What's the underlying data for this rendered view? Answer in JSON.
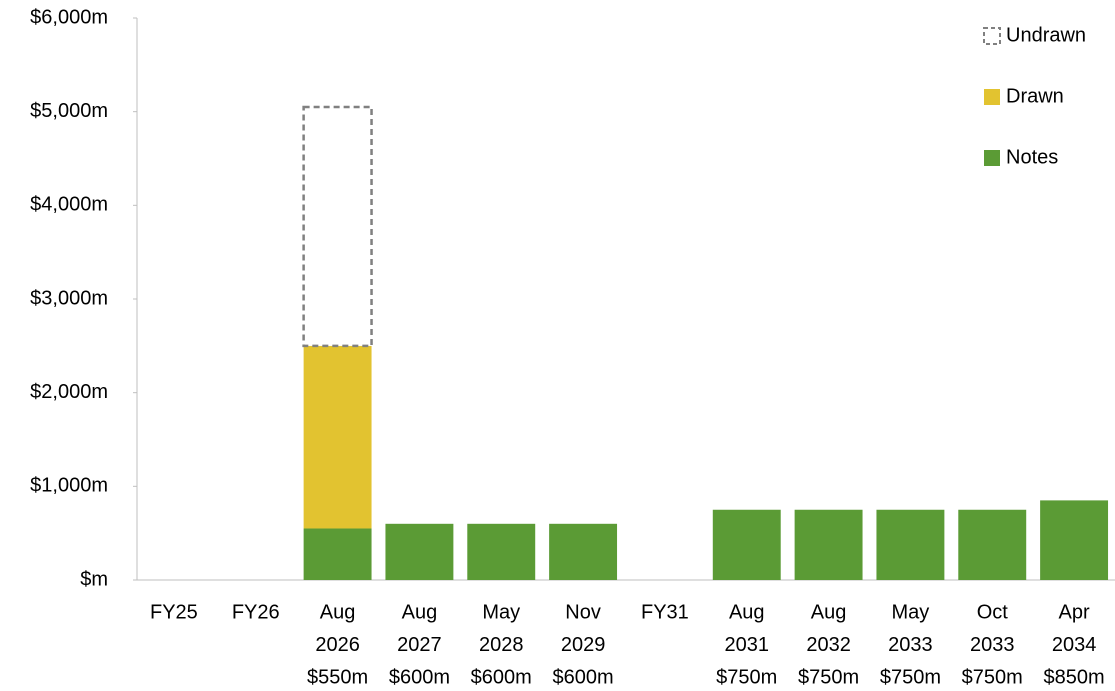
{
  "chart_data": {
    "type": "stacked_bar",
    "categories": [
      [
        "FY25"
      ],
      [
        "FY26"
      ],
      [
        "Aug",
        "2026",
        "$550m"
      ],
      [
        "Aug",
        "2027",
        "$600m"
      ],
      [
        "May",
        "2028",
        "$600m"
      ],
      [
        "Nov",
        "2029",
        "$600m"
      ],
      [
        "FY31"
      ],
      [
        "Aug",
        "2031",
        "$750m"
      ],
      [
        "Aug",
        "2032",
        "$750m"
      ],
      [
        "May",
        "2033",
        "$750m"
      ],
      [
        "Oct",
        "2033",
        "$750m"
      ],
      [
        "Apr",
        "2034",
        "$850m"
      ]
    ],
    "series": [
      {
        "name": "Notes",
        "color": "#5b9b35",
        "values": [
          null,
          null,
          550,
          600,
          600,
          600,
          null,
          750,
          750,
          750,
          750,
          850
        ]
      },
      {
        "name": "Drawn",
        "color": "#e2c330",
        "values": [
          null,
          null,
          1950,
          null,
          null,
          null,
          null,
          null,
          null,
          null,
          null,
          null
        ]
      },
      {
        "name": "Undrawn",
        "color": "#808080",
        "dashed": true,
        "values": [
          null,
          null,
          2550,
          null,
          null,
          null,
          null,
          null,
          null,
          null,
          null,
          null
        ]
      }
    ],
    "ylim": [
      0,
      6000
    ],
    "yticks": [
      {
        "value": 0,
        "label": "$m"
      },
      {
        "value": 1000,
        "label": "$1,000m"
      },
      {
        "value": 2000,
        "label": "$2,000m"
      },
      {
        "value": 3000,
        "label": "$3,000m"
      },
      {
        "value": 4000,
        "label": "$4,000m"
      },
      {
        "value": 5000,
        "label": "$5,000m"
      },
      {
        "value": 6000,
        "label": "$6,000m"
      }
    ],
    "grid": false,
    "legend": "top-right"
  }
}
